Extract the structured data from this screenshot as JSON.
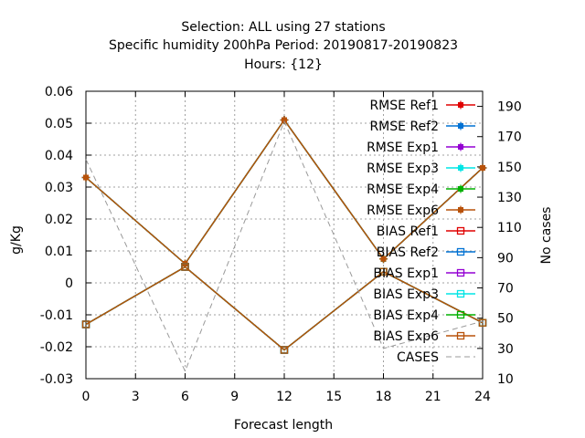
{
  "chart_data": {
    "type": "line",
    "title_lines": [
      "Selection: ALL using    27 stations",
      "Specific humidity 200hPa   Period: 20190817-20190823",
      "Hours: {12}"
    ],
    "xlabel": "Forecast length",
    "ylabel": "g/Kg",
    "y2label": "No cases",
    "x": [
      0,
      6,
      12,
      18,
      24
    ],
    "xlim": [
      0,
      24
    ],
    "ylim": [
      -0.03,
      0.06
    ],
    "y2lim": [
      10,
      200
    ],
    "xticks": [
      "0",
      "3",
      "6",
      "9",
      "12",
      "15",
      "18",
      "21",
      "24"
    ],
    "yticks": [
      "-0.03",
      "-0.02",
      "-0.01",
      "0",
      "0.01",
      "0.02",
      "0.03",
      "0.04",
      "0.05",
      "0.06"
    ],
    "y2ticks": [
      "10",
      "30",
      "50",
      "70",
      "90",
      "110",
      "130",
      "150",
      "170",
      "190"
    ],
    "grid": true,
    "legend_position": "top-right",
    "series": [
      {
        "name": "RMSE Ref1",
        "color": "#e00000",
        "marker": "filled-square",
        "values": [
          0.033,
          0.006,
          0.051,
          0.0075,
          0.036
        ]
      },
      {
        "name": "RMSE Ref2",
        "color": "#0072d4",
        "marker": "filled-square",
        "values": [
          0.033,
          0.006,
          0.051,
          0.0075,
          0.036
        ]
      },
      {
        "name": "RMSE Exp1",
        "color": "#9400d3",
        "marker": "filled-square",
        "values": [
          0.033,
          0.006,
          0.051,
          0.0075,
          0.036
        ]
      },
      {
        "name": "RMSE Exp3",
        "color": "#00e5e5",
        "marker": "filled-square",
        "values": [
          0.033,
          0.006,
          0.051,
          0.0075,
          0.036
        ]
      },
      {
        "name": "RMSE Exp4",
        "color": "#00b000",
        "marker": "filled-square",
        "values": [
          0.033,
          0.006,
          0.051,
          0.0075,
          0.036
        ]
      },
      {
        "name": "RMSE Exp6",
        "color": "#b8520a",
        "marker": "filled-square",
        "values": [
          0.033,
          0.006,
          0.051,
          0.0075,
          0.036
        ]
      },
      {
        "name": "BIAS Ref1",
        "color": "#e00000",
        "marker": "open-square",
        "values": [
          -0.013,
          0.005,
          -0.021,
          0.0035,
          -0.0125
        ]
      },
      {
        "name": "BIAS Ref2",
        "color": "#0072d4",
        "marker": "open-square",
        "values": [
          -0.013,
          0.005,
          -0.021,
          0.0035,
          -0.0125
        ]
      },
      {
        "name": "BIAS Exp1",
        "color": "#9400d3",
        "marker": "open-square",
        "values": [
          -0.013,
          0.005,
          -0.021,
          0.0035,
          -0.0125
        ]
      },
      {
        "name": "BIAS Exp3",
        "color": "#00e5e5",
        "marker": "open-square",
        "values": [
          -0.013,
          0.005,
          -0.021,
          0.0035,
          -0.0125
        ]
      },
      {
        "name": "BIAS Exp4",
        "color": "#00b000",
        "marker": "open-square",
        "values": [
          -0.013,
          0.005,
          -0.021,
          0.0035,
          -0.0125
        ]
      },
      {
        "name": "BIAS Exp6",
        "color": "#b8520a",
        "marker": "open-square",
        "values": [
          -0.013,
          0.005,
          -0.021,
          0.0035,
          -0.0125
        ]
      },
      {
        "name": "CASES",
        "color": "#999999",
        "marker": "none",
        "dashed": true,
        "axis": "y2",
        "values": [
          155,
          15,
          180,
          30,
          48
        ]
      }
    ]
  }
}
